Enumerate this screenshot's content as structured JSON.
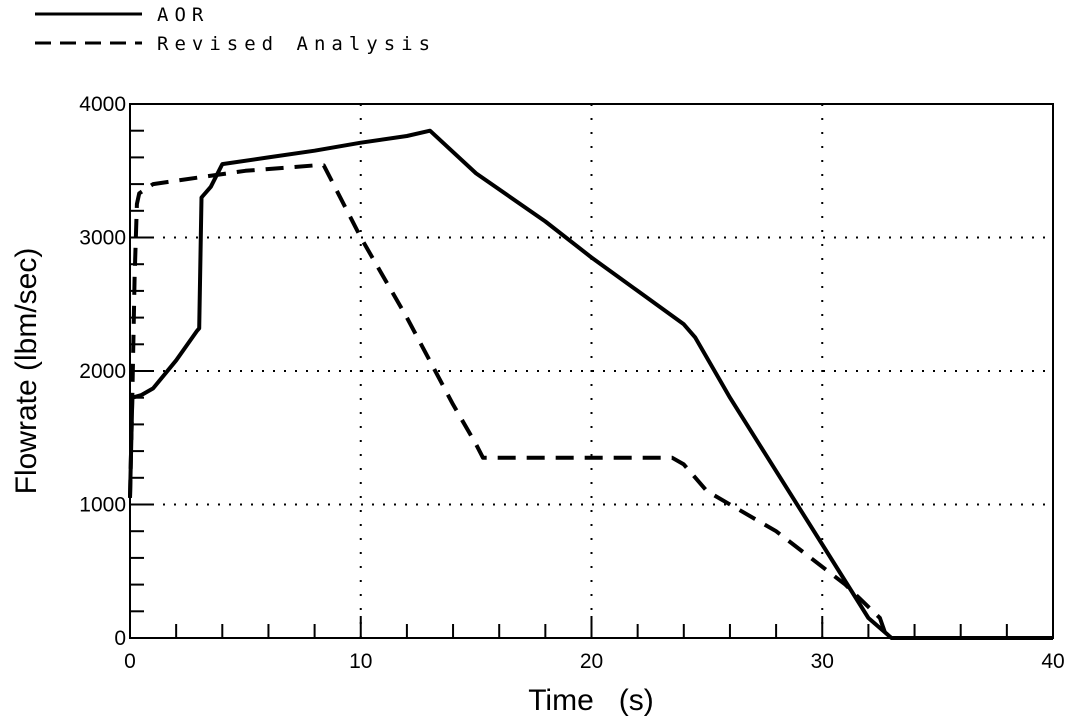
{
  "chart_data": {
    "type": "line",
    "xlabel": "Time   (s)",
    "ylabel": "Flowrate (lbm/sec)",
    "xlim": [
      0,
      40
    ],
    "ylim": [
      0,
      4000
    ],
    "x_ticks": [
      "0",
      "10",
      "20",
      "30",
      "40"
    ],
    "y_ticks": [
      "0",
      "1000",
      "2000",
      "3000",
      "4000"
    ],
    "grid": true,
    "grid_style": "dotted",
    "legend_position": "top-left",
    "series": [
      {
        "name": "AOR",
        "style": "solid",
        "color": "#000000",
        "x": [
          0,
          0.1,
          0.5,
          1,
          2,
          2.9,
          3,
          3.1,
          3.5,
          4,
          6,
          8,
          10,
          12,
          13,
          15,
          18,
          20,
          22,
          24,
          24.5,
          26,
          28,
          30,
          32,
          33,
          35,
          40
        ],
        "y": [
          1050,
          1800,
          1820,
          1870,
          2080,
          2300,
          2320,
          3300,
          3380,
          3550,
          3600,
          3650,
          3710,
          3760,
          3800,
          3480,
          3120,
          2850,
          2600,
          2350,
          2250,
          1800,
          1250,
          700,
          150,
          0,
          0,
          0
        ]
      },
      {
        "name": "Revised Analysis",
        "style": "dashed",
        "color": "#000000",
        "x": [
          0,
          0.1,
          0.2,
          0.3,
          0.4,
          1,
          3,
          5,
          8,
          8.4,
          10,
          12,
          14,
          15,
          15.3,
          20,
          23.5,
          24,
          25,
          28,
          31,
          32.5,
          32.8,
          35,
          40
        ],
        "y": [
          1050,
          1800,
          2700,
          3250,
          3330,
          3400,
          3450,
          3500,
          3540,
          3540,
          3000,
          2400,
          1750,
          1450,
          1350,
          1350,
          1350,
          1300,
          1100,
          800,
          400,
          150,
          0,
          0,
          0
        ]
      }
    ]
  }
}
